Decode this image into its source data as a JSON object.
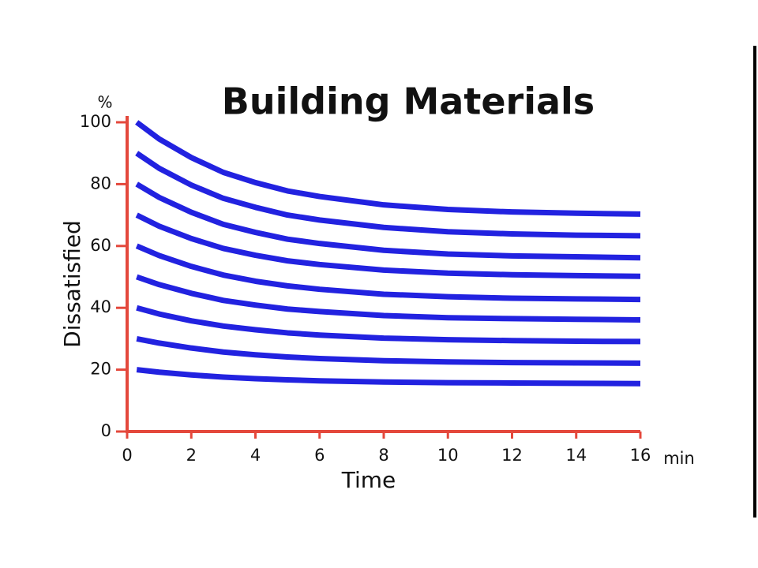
{
  "chart_data": {
    "type": "line",
    "title": "Building Materials",
    "y_label": "Dissatisfied",
    "x_label": "Time",
    "y_unit": "%",
    "x_unit": "min",
    "x": [
      0.3,
      1,
      2,
      3,
      4,
      5,
      6,
      8,
      10,
      12,
      14,
      16
    ],
    "series": [
      {
        "color": "#2222e0",
        "values": [
          100,
          94.6,
          88.6,
          83.8,
          80.5,
          77.8,
          76,
          73.3,
          71.8,
          71,
          70.6,
          70.3
        ]
      },
      {
        "color": "#2222e0",
        "values": [
          90,
          85.1,
          79.7,
          75.4,
          72.5,
          70,
          68.4,
          66,
          64.6,
          63.9,
          63.5,
          63.3
        ]
      },
      {
        "color": "#2222e0",
        "values": [
          80,
          75.7,
          70.9,
          67,
          64.4,
          62.2,
          60.8,
          58.6,
          57.4,
          56.8,
          56.5,
          56.2
        ]
      },
      {
        "color": "#2222e0",
        "values": [
          70,
          66.4,
          62.4,
          59.2,
          57,
          55.2,
          54,
          52.2,
          51.2,
          50.7,
          50.4,
          50.2
        ]
      },
      {
        "color": "#2222e0",
        "values": [
          60,
          56.9,
          53.4,
          50.6,
          48.6,
          47.1,
          46,
          44.4,
          43.6,
          43.1,
          42.9,
          42.7
        ]
      },
      {
        "color": "#2222e0",
        "values": [
          50,
          47.5,
          44.7,
          42.4,
          40.9,
          39.6,
          38.8,
          37.5,
          36.8,
          36.5,
          36.3,
          36.1
        ]
      },
      {
        "color": "#2222e0",
        "values": [
          40,
          38,
          35.8,
          34.1,
          32.9,
          31.9,
          31.2,
          30.2,
          29.7,
          29.4,
          29.2,
          29.1
        ]
      },
      {
        "color": "#2222e0",
        "values": [
          30,
          28.6,
          27,
          25.7,
          24.8,
          24.1,
          23.6,
          22.9,
          22.5,
          22.3,
          22.2,
          22.1
        ]
      },
      {
        "color": "#2222e0",
        "values": [
          20,
          19.2,
          18.3,
          17.6,
          17.1,
          16.7,
          16.4,
          16,
          15.8,
          15.7,
          15.6,
          15.5
        ]
      }
    ],
    "xlim": [
      0,
      16
    ],
    "xticks": [
      0,
      2,
      4,
      6,
      8,
      10,
      12,
      14,
      16
    ],
    "ylim": [
      0,
      100
    ],
    "yticks": [
      0,
      20,
      40,
      60,
      80,
      100
    ],
    "axis_color": "#e4483c",
    "grid": false
  }
}
